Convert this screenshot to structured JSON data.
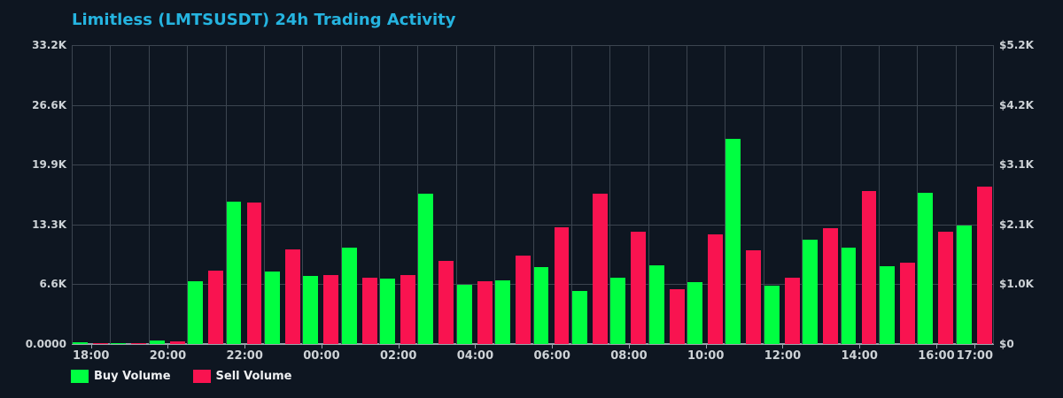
{
  "title": "Limitless (LMTSUSDT) 24h Trading Activity",
  "colors": {
    "background": "#0e1621",
    "grid": "#3c4550",
    "axis": "#9aa3ac",
    "buy": "#00ff41",
    "sell": "#f91350",
    "title": "#25b4e0",
    "tick_text": "#cdd2d6",
    "legend_text": "#eef0f2"
  },
  "legend": {
    "buy_label": "Buy Volume",
    "sell_label": "Sell Volume"
  },
  "chart_data": {
    "type": "bar",
    "title": "Limitless (LMTSUSDT) 24h Trading Activity",
    "categories": [
      "18:00",
      "19:00",
      "20:00",
      "21:00",
      "22:00",
      "23:00",
      "00:00",
      "01:00",
      "02:00",
      "03:00",
      "04:00",
      "05:00",
      "06:00",
      "07:00",
      "08:00",
      "09:00",
      "10:00",
      "11:00",
      "12:00",
      "13:00",
      "14:00",
      "15:00",
      "16:00",
      "17:00"
    ],
    "series": [
      {
        "name": "Buy Volume",
        "color_key": "buy",
        "values": [
          150,
          140,
          400,
          7000,
          15850,
          8050,
          7570,
          10700,
          7310,
          16670,
          6560,
          7080,
          8580,
          5940,
          7410,
          8710,
          6920,
          22810,
          6490,
          11560,
          10740,
          8620,
          16840,
          13120
        ]
      },
      {
        "name": "Sell Volume",
        "color_key": "sell",
        "values": [
          120,
          110,
          320,
          8130,
          15700,
          10480,
          7660,
          7340,
          7670,
          9200,
          6950,
          9790,
          12990,
          16740,
          12430,
          6070,
          12140,
          10410,
          7380,
          12820,
          17040,
          9010,
          12430,
          17520
        ]
      }
    ],
    "y_axis_left": {
      "ticks": [
        "0.0000",
        "6.6K",
        "13.3K",
        "19.9K",
        "26.6K",
        "33.2K"
      ],
      "min": 0,
      "max": 33200
    },
    "y_axis_right": {
      "ticks": [
        "$0",
        "$1.0K",
        "$2.1K",
        "$3.1K",
        "$4.2K",
        "$5.2K"
      ],
      "min": 0,
      "max": 5200
    },
    "x_axis": {
      "tick_labels": [
        "18:00",
        "20:00",
        "22:00",
        "00:00",
        "02:00",
        "04:00",
        "06:00",
        "08:00",
        "10:00",
        "12:00",
        "14:00",
        "16:00",
        "17:00"
      ],
      "tick_indices": [
        0,
        2,
        4,
        6,
        8,
        10,
        12,
        14,
        16,
        18,
        20,
        22,
        23
      ]
    },
    "grid": true,
    "legend_position": "bottom-left"
  }
}
